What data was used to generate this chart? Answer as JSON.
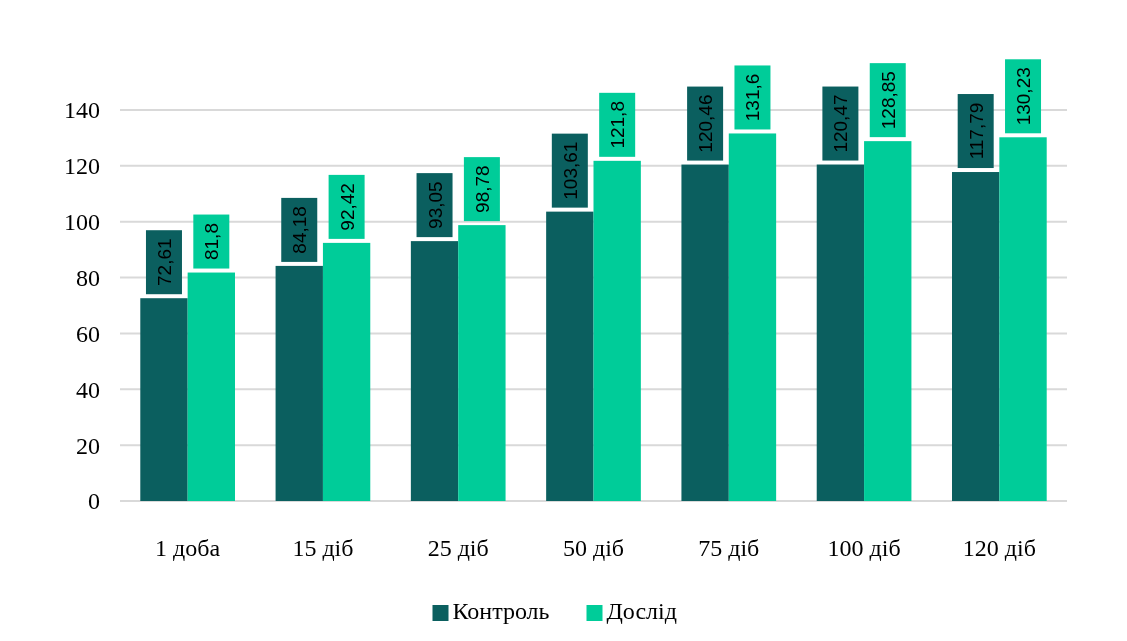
{
  "chart_data": {
    "type": "bar",
    "categories": [
      "1 доба",
      "15 діб",
      "25 діб",
      "50 діб",
      "75 діб",
      "100 діб",
      "120 діб"
    ],
    "series": [
      {
        "name": "Контроль",
        "color": "#0b5f5f",
        "values": [
          72.61,
          84.18,
          93.05,
          103.61,
          120.46,
          120.47,
          117.79
        ]
      },
      {
        "name": "Дослід",
        "color": "#00cc99",
        "values": [
          81.8,
          92.42,
          98.78,
          121.8,
          131.6,
          128.85,
          130.23
        ]
      }
    ],
    "value_labels": [
      [
        "72,61",
        "84,18",
        "93,05",
        "103,61",
        "120,46",
        "120,47",
        "117,79"
      ],
      [
        "81,8",
        "92,42",
        "98,78",
        "121,8",
        "131,6",
        "128,85",
        "130,23"
      ]
    ],
    "ylim": [
      0,
      140
    ],
    "yticks": [
      0,
      20,
      40,
      60,
      80,
      100,
      120,
      140
    ],
    "grid": "y",
    "legend": "bottom"
  }
}
